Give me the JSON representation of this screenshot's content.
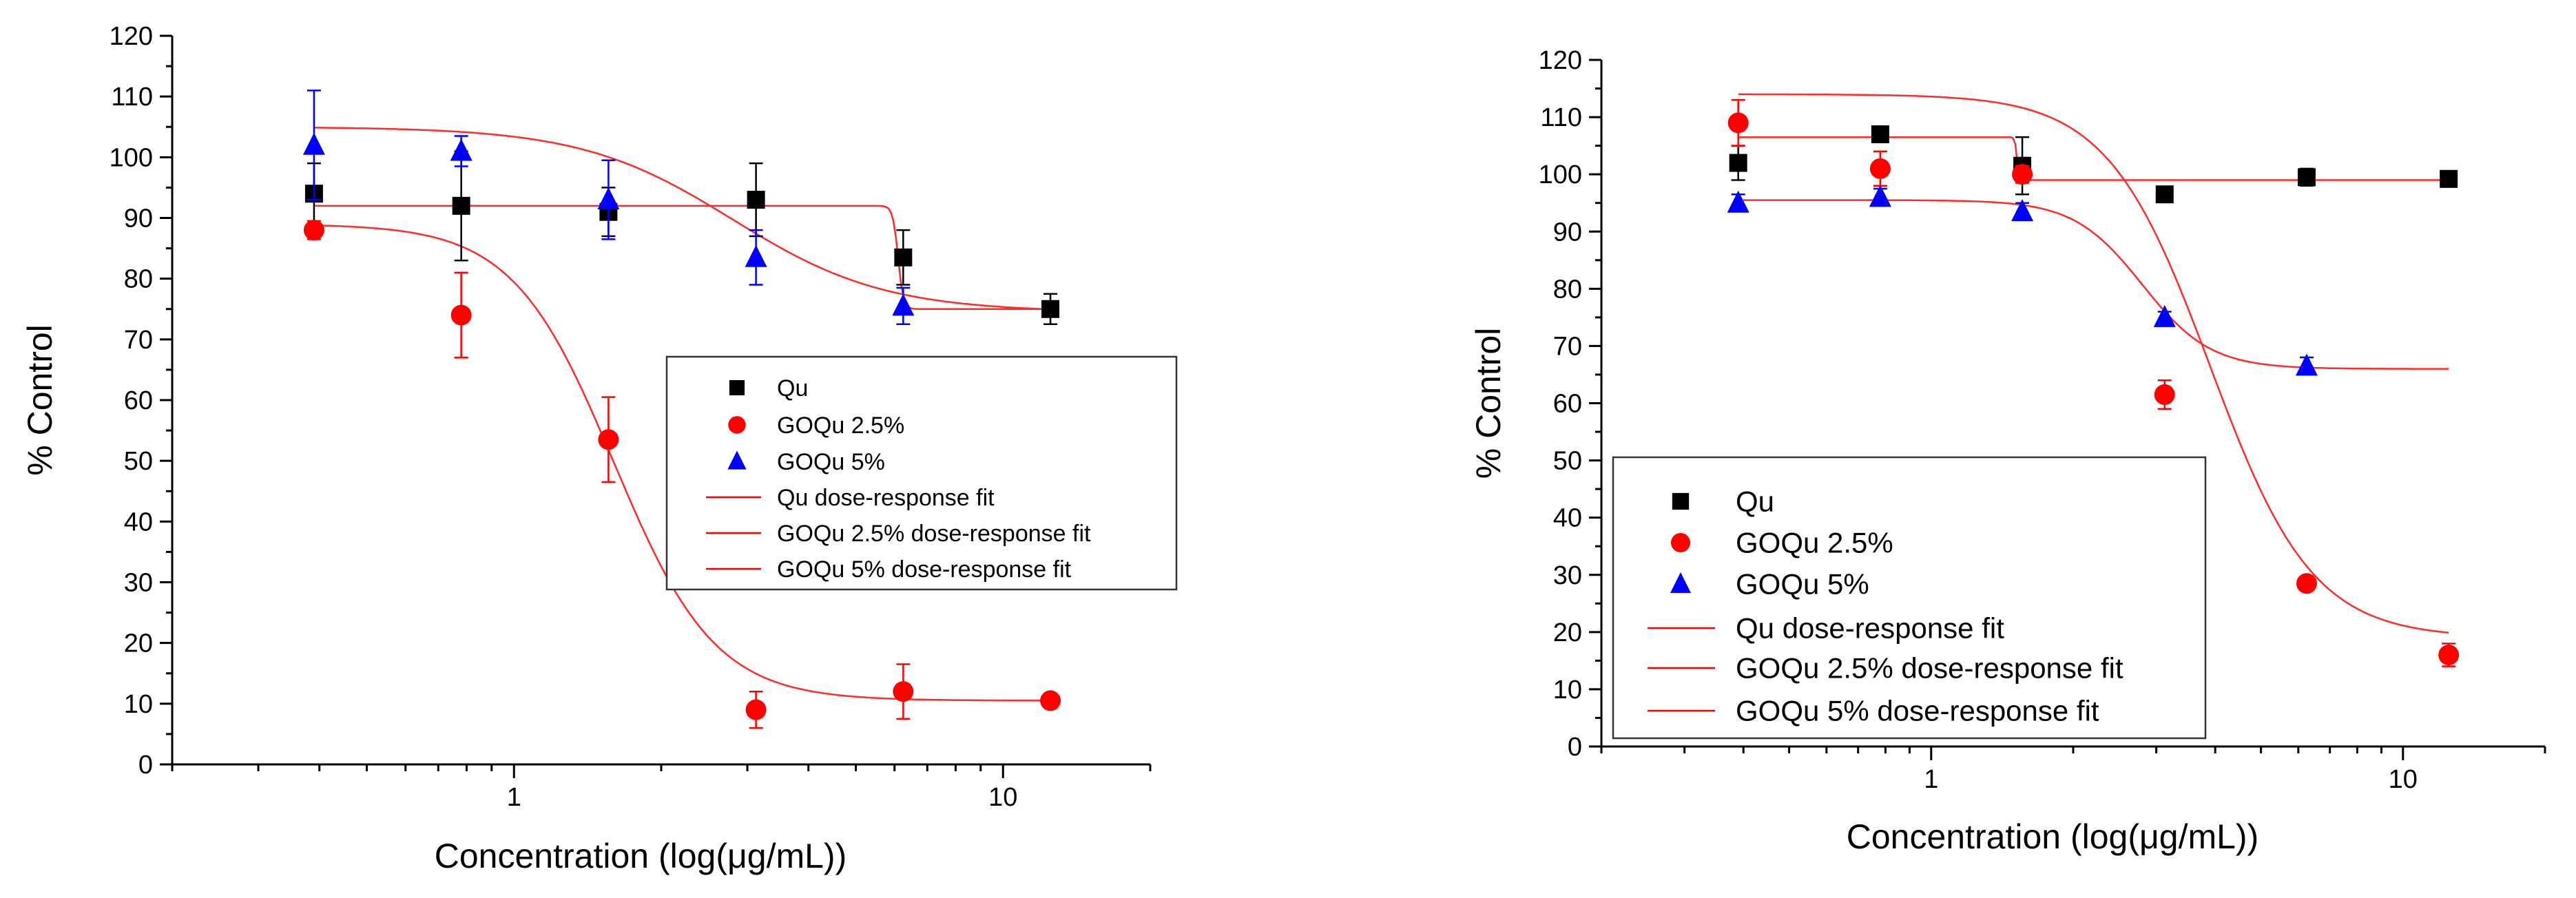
{
  "chart_data": [
    {
      "type": "scatter",
      "xscale": "log",
      "xlim": [
        0.2,
        20
      ],
      "ylim": [
        0,
        120
      ],
      "xticks": [
        1,
        10
      ],
      "yticks": [
        0,
        10,
        20,
        30,
        40,
        50,
        60,
        70,
        80,
        90,
        100,
        110,
        120
      ],
      "xlabel": "Concentration (log(μg/mL))",
      "ylabel": "% Control",
      "legend_position": "center-right",
      "series": [
        {
          "name": "Qu",
          "marker": "square",
          "color": "#000000",
          "points": [
            {
              "x": 0.39,
              "y": 94,
              "err": 5
            },
            {
              "x": 0.78,
              "y": 92,
              "err": 9
            },
            {
              "x": 1.56,
              "y": 91,
              "err": 4
            },
            {
              "x": 3.125,
              "y": 93,
              "err": 6
            },
            {
              "x": 6.25,
              "y": 83.5,
              "err": 4.5
            },
            {
              "x": 12.5,
              "y": 75,
              "err": 2.5
            }
          ]
        },
        {
          "name": "GOQu 2.5%",
          "marker": "circle",
          "color": "#ff0000",
          "points": [
            {
              "x": 0.39,
              "y": 88,
              "err": 1.5
            },
            {
              "x": 0.78,
              "y": 74,
              "err": 7
            },
            {
              "x": 1.56,
              "y": 53.5,
              "err": 7
            },
            {
              "x": 3.125,
              "y": 9,
              "err": 3
            },
            {
              "x": 6.25,
              "y": 12,
              "err": 4.5
            },
            {
              "x": 12.5,
              "y": 10.5,
              "err": 1
            }
          ]
        },
        {
          "name": "GOQu 5%",
          "marker": "triangle",
          "color": "#0000ff",
          "points": [
            {
              "x": 0.39,
              "y": 102,
              "err": 9
            },
            {
              "x": 0.78,
              "y": 101,
              "err": 2.5
            },
            {
              "x": 1.56,
              "y": 93,
              "err": 6.5
            },
            {
              "x": 3.125,
              "y": 83.5,
              "err": 4.5
            },
            {
              "x": 6.25,
              "y": 75.5,
              "err": 3
            }
          ]
        }
      ],
      "fits": [
        {
          "name": "Qu dose-response fit",
          "color": "#ff0000",
          "top": 92,
          "bottom": 75,
          "x0": 6.1,
          "p": 80
        },
        {
          "name": "GOQu 2.5% dose-response fit",
          "color": "#ff0000",
          "top": 89,
          "bottom": 10.5,
          "x0": 1.6,
          "p": 4.2
        },
        {
          "name": "GOQu 5% dose-response fit",
          "color": "#ff0000",
          "top": 105,
          "bottom": 74.5,
          "x0": 2.8,
          "p": 2.8
        }
      ]
    },
    {
      "type": "scatter",
      "xscale": "log",
      "xlim": [
        0.2,
        20
      ],
      "ylim": [
        0,
        120
      ],
      "xticks": [
        1,
        10
      ],
      "yticks": [
        0,
        10,
        20,
        30,
        40,
        50,
        60,
        70,
        80,
        90,
        100,
        110,
        120
      ],
      "xlabel": "Concentration (log(μg/mL))",
      "ylabel": "% Control",
      "legend_position": "bottom-left",
      "series": [
        {
          "name": "Qu",
          "marker": "square",
          "color": "#000000",
          "points": [
            {
              "x": 0.39,
              "y": 102,
              "err": 3
            },
            {
              "x": 0.78,
              "y": 107,
              "err": 1
            },
            {
              "x": 1.56,
              "y": 101.5,
              "err": 5
            },
            {
              "x": 3.125,
              "y": 96.5,
              "err": 0.5
            },
            {
              "x": 6.25,
              "y": 99.5,
              "err": 1.5
            },
            {
              "x": 12.5,
              "y": 99.2,
              "err": 0.5
            }
          ]
        },
        {
          "name": "GOQu 2.5%",
          "marker": "circle",
          "color": "#ff0000",
          "points": [
            {
              "x": 0.39,
              "y": 109,
              "err": 4
            },
            {
              "x": 0.78,
              "y": 101,
              "err": 3
            },
            {
              "x": 1.56,
              "y": 100,
              "err": 1.5
            },
            {
              "x": 3.125,
              "y": 61.5,
              "err": 2.5
            },
            {
              "x": 6.25,
              "y": 28.5,
              "err": 0.5
            },
            {
              "x": 12.5,
              "y": 16,
              "err": 2
            }
          ]
        },
        {
          "name": "GOQu 5%",
          "marker": "triangle",
          "color": "#0000ff",
          "points": [
            {
              "x": 0.39,
              "y": 95,
              "err": 1.5
            },
            {
              "x": 0.78,
              "y": 96,
              "err": 1.5
            },
            {
              "x": 1.56,
              "y": 93.5,
              "err": 1.5
            },
            {
              "x": 3.125,
              "y": 75,
              "err": 1
            },
            {
              "x": 6.25,
              "y": 66.5,
              "err": 1.5
            }
          ]
        }
      ],
      "fits": [
        {
          "name": "Qu dose-response fit",
          "color": "#ff0000",
          "top": 106.5,
          "bottom": 99,
          "x0": 1.52,
          "p": 200
        },
        {
          "name": "GOQu 2.5% dose-response fit",
          "color": "#ff0000",
          "top": 114,
          "bottom": 19,
          "x0": 3.9,
          "p": 4.0
        },
        {
          "name": "GOQu 5% dose-response fit",
          "color": "#ff0000",
          "top": 95.5,
          "bottom": 66,
          "x0": 2.8,
          "p": 6.0
        }
      ]
    }
  ]
}
